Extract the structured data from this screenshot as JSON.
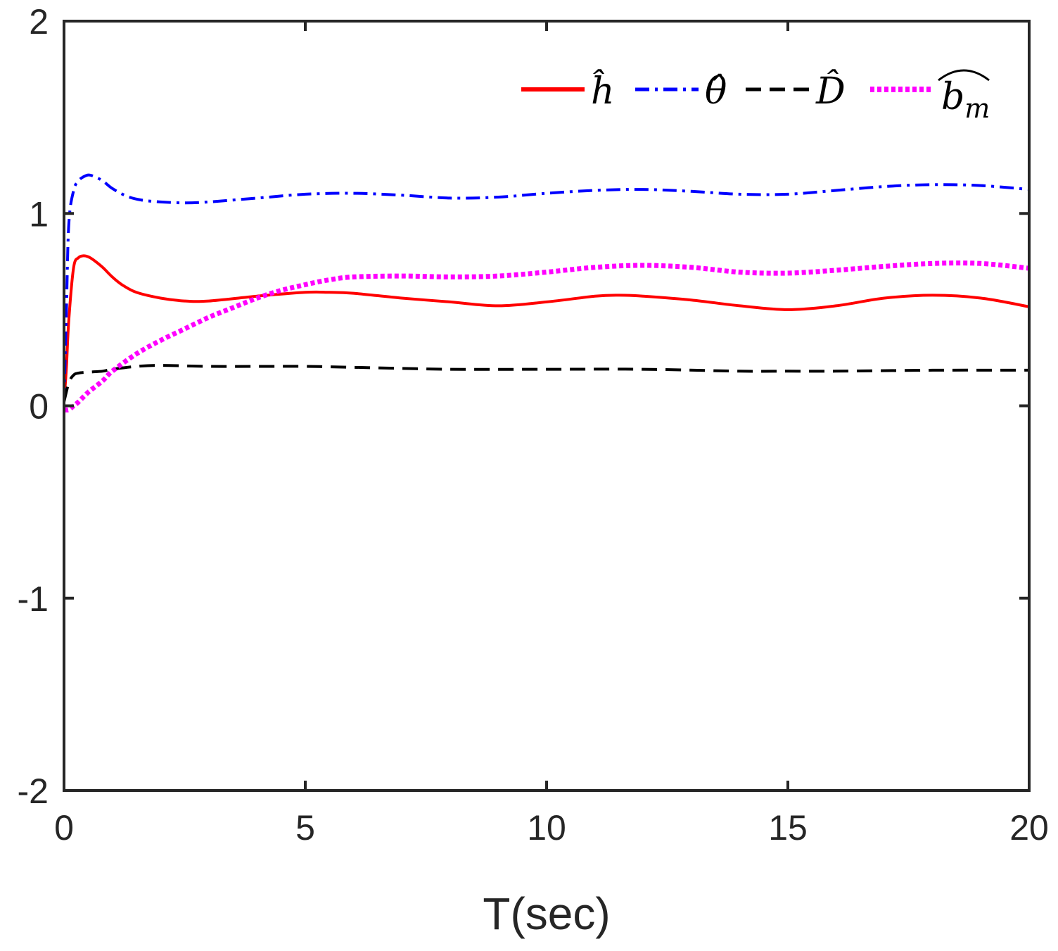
{
  "chart_data": {
    "type": "line",
    "title": "",
    "xlabel": "T(sec)",
    "ylabel": "",
    "xlim": [
      0,
      20
    ],
    "ylim": [
      -2,
      2
    ],
    "xticks": [
      0,
      5,
      10,
      15,
      20
    ],
    "xtick_labels": [
      "0",
      "5",
      "10",
      "15",
      "20"
    ],
    "yticks": [
      -2,
      -1,
      0,
      1,
      2
    ],
    "ytick_labels": [
      "-2",
      "-1",
      "0",
      "1",
      "2"
    ],
    "grid": false,
    "legend_position": "top-right",
    "series": [
      {
        "name": "h-hat",
        "label": "ĥ",
        "color": "#ff0000",
        "style": "solid",
        "x": [
          0,
          0.05,
          0.1,
          0.2,
          0.3,
          0.4,
          0.5,
          0.6,
          0.8,
          1.0,
          1.2,
          1.5,
          2.0,
          2.5,
          3.0,
          4.0,
          5.0,
          5.5,
          6.0,
          7.0,
          8.0,
          9.0,
          10.0,
          11.0,
          11.5,
          12.0,
          13.0,
          14.0,
          15.0,
          16.0,
          17.0,
          18.0,
          19.0,
          20.0
        ],
        "y": [
          0.02,
          0.2,
          0.45,
          0.72,
          0.77,
          0.78,
          0.775,
          0.76,
          0.72,
          0.67,
          0.63,
          0.59,
          0.56,
          0.545,
          0.545,
          0.57,
          0.59,
          0.59,
          0.585,
          0.56,
          0.54,
          0.52,
          0.54,
          0.57,
          0.575,
          0.57,
          0.55,
          0.52,
          0.5,
          0.52,
          0.56,
          0.575,
          0.56,
          0.515
        ]
      },
      {
        "name": "theta-hat",
        "label": "θ̂",
        "color": "#0000ff",
        "style": "dashdot",
        "x": [
          0,
          0.05,
          0.1,
          0.2,
          0.3,
          0.4,
          0.5,
          0.6,
          0.8,
          1.0,
          1.3,
          1.6,
          2.0,
          2.5,
          3.0,
          4.0,
          5.0,
          6.0,
          7.0,
          8.0,
          9.0,
          10.0,
          11.0,
          12.0,
          13.0,
          14.0,
          15.0,
          16.0,
          17.0,
          18.0,
          19.0,
          20.0
        ],
        "y": [
          0.02,
          0.5,
          0.95,
          1.12,
          1.17,
          1.19,
          1.2,
          1.195,
          1.17,
          1.13,
          1.09,
          1.07,
          1.06,
          1.055,
          1.06,
          1.08,
          1.1,
          1.105,
          1.095,
          1.08,
          1.085,
          1.105,
          1.12,
          1.125,
          1.115,
          1.1,
          1.1,
          1.12,
          1.14,
          1.15,
          1.145,
          1.125
        ]
      },
      {
        "name": "D-hat",
        "label": "D̂",
        "color": "#000000",
        "style": "dashed",
        "x": [
          0,
          0.1,
          0.2,
          0.3,
          0.5,
          0.8,
          1.0,
          1.5,
          2.0,
          3.0,
          4.0,
          5.0,
          6.0,
          8.0,
          10.0,
          12.0,
          14.0,
          15.0,
          16.0,
          18.0,
          20.0
        ],
        "y": [
          0.02,
          0.12,
          0.16,
          0.17,
          0.175,
          0.18,
          0.19,
          0.205,
          0.21,
          0.205,
          0.205,
          0.205,
          0.2,
          0.19,
          0.19,
          0.19,
          0.18,
          0.18,
          0.18,
          0.185,
          0.185
        ]
      },
      {
        "name": "b_m-hat",
        "label": "b_m",
        "color": "#ff00ff",
        "style": "dotted",
        "x": [
          0,
          0.1,
          0.2,
          0.3,
          0.5,
          0.8,
          1.0,
          1.5,
          2.0,
          2.5,
          3.0,
          3.5,
          4.0,
          4.5,
          5.0,
          5.5,
          6.0,
          7.0,
          8.0,
          9.0,
          10.0,
          11.0,
          12.0,
          13.0,
          14.0,
          15.0,
          16.0,
          17.0,
          18.0,
          19.0,
          20.0
        ],
        "y": [
          -0.02,
          -0.02,
          0.0,
          0.02,
          0.07,
          0.13,
          0.18,
          0.27,
          0.34,
          0.4,
          0.46,
          0.51,
          0.56,
          0.6,
          0.63,
          0.655,
          0.67,
          0.675,
          0.67,
          0.675,
          0.695,
          0.72,
          0.73,
          0.72,
          0.695,
          0.69,
          0.705,
          0.725,
          0.74,
          0.74,
          0.715
        ]
      }
    ]
  }
}
